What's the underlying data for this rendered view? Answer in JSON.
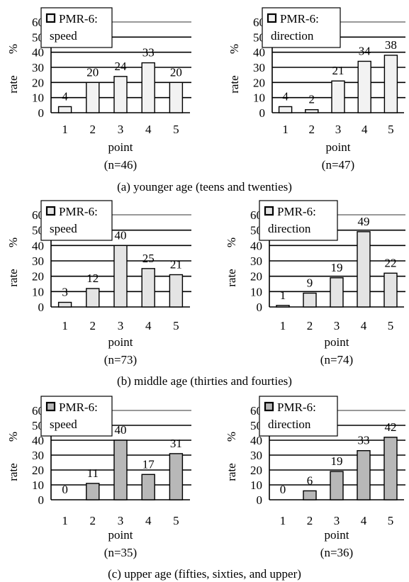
{
  "captions": [
    "(a) younger age (teens and twenties)",
    "(b) middle age (thirties and fourties)",
    "(c) upper age (fifties, sixties, and upper)"
  ],
  "chart_data": [
    {
      "type": "bar",
      "group": "a",
      "ylabel": "rate",
      "yunit": "%",
      "xlabel": "point",
      "n_label": "(n=46)",
      "legend": [
        "PMR-6:",
        "speed"
      ],
      "color": "#f2f2f2",
      "categories": [
        "1",
        "2",
        "3",
        "4",
        "5"
      ],
      "values": [
        4,
        20,
        24,
        33,
        20
      ],
      "ylim": [
        0,
        60
      ],
      "yticks": [
        "0",
        "10",
        "20",
        "30",
        "40",
        "50",
        "60"
      ]
    },
    {
      "type": "bar",
      "group": "a",
      "ylabel": "rate",
      "yunit": "%",
      "xlabel": "point",
      "n_label": "(n=47)",
      "legend": [
        "PMR-6:",
        "direction"
      ],
      "color": "#f2f2f2",
      "categories": [
        "1",
        "2",
        "3",
        "4",
        "5"
      ],
      "values": [
        4,
        2,
        21,
        34,
        38
      ],
      "ylim": [
        0,
        60
      ],
      "yticks": [
        "0",
        "10",
        "20",
        "30",
        "40",
        "50",
        "60"
      ]
    },
    {
      "type": "bar",
      "group": "b",
      "ylabel": "rate",
      "yunit": "%",
      "xlabel": "point",
      "n_label": "(n=73)",
      "legend": [
        "PMR-6:",
        "speed"
      ],
      "color": "#e4e4e4",
      "categories": [
        "1",
        "2",
        "3",
        "4",
        "5"
      ],
      "values": [
        3,
        12,
        40,
        25,
        21
      ],
      "ylim": [
        0,
        60
      ],
      "yticks": [
        "0",
        "10",
        "20",
        "30",
        "40",
        "50",
        "60"
      ]
    },
    {
      "type": "bar",
      "group": "b",
      "ylabel": "rate",
      "yunit": "%",
      "xlabel": "point",
      "n_label": "(n=74)",
      "legend": [
        "PMR-6:",
        "direction"
      ],
      "color": "#e4e4e4",
      "categories": [
        "1",
        "2",
        "3",
        "4",
        "5"
      ],
      "values": [
        1,
        9,
        19,
        49,
        22
      ],
      "ylim": [
        0,
        60
      ],
      "yticks": [
        "0",
        "10",
        "20",
        "30",
        "40",
        "50",
        "60"
      ]
    },
    {
      "type": "bar",
      "group": "c",
      "ylabel": "rate",
      "yunit": "%",
      "xlabel": "point",
      "n_label": "(n=35)",
      "legend": [
        "PMR-6:",
        "speed"
      ],
      "color": "#b8b8b8",
      "categories": [
        "1",
        "2",
        "3",
        "4",
        "5"
      ],
      "values": [
        0,
        11,
        40,
        17,
        31
      ],
      "ylim": [
        0,
        60
      ],
      "yticks": [
        "0",
        "10",
        "20",
        "30",
        "40",
        "50",
        "60"
      ]
    },
    {
      "type": "bar",
      "group": "c",
      "ylabel": "rate",
      "yunit": "%",
      "xlabel": "point",
      "n_label": "(n=36)",
      "legend": [
        "PMR-6:",
        "direction"
      ],
      "color": "#b8b8b8",
      "categories": [
        "1",
        "2",
        "3",
        "4",
        "5"
      ],
      "values": [
        0,
        6,
        19,
        33,
        42
      ],
      "ylim": [
        0,
        60
      ],
      "yticks": [
        "0",
        "10",
        "20",
        "30",
        "40",
        "50",
        "60"
      ]
    }
  ]
}
